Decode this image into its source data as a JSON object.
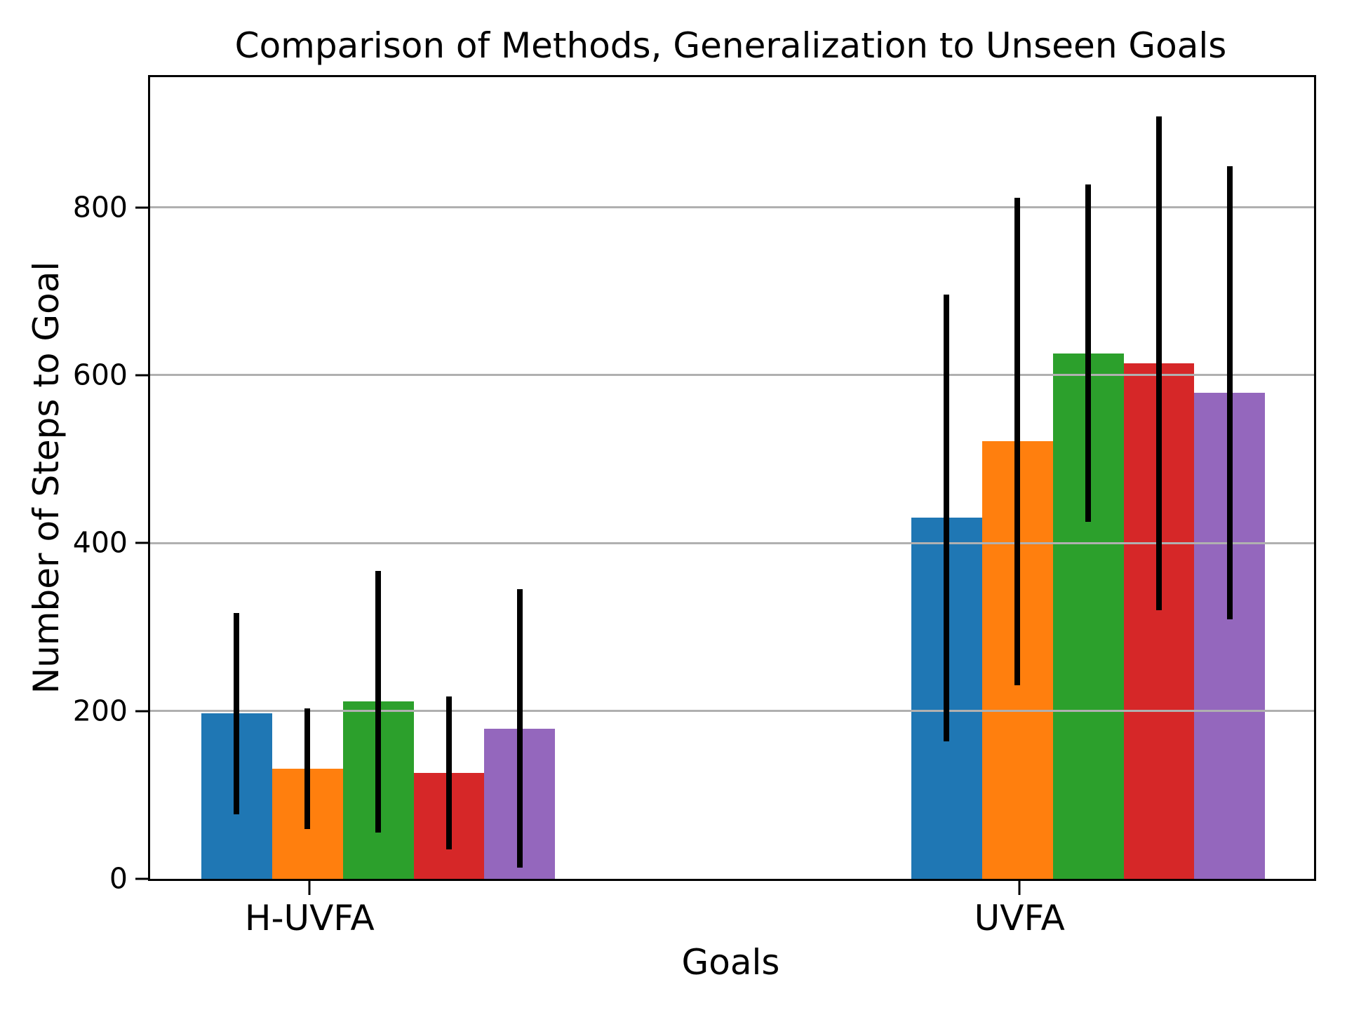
{
  "chart_data": {
    "type": "bar",
    "title": "Comparison of Methods, Generalization to Unseen Goals",
    "xlabel": "Goals",
    "ylabel": "Number of Steps to Goal",
    "categories": [
      "H-UVFA",
      "UVFA"
    ],
    "series": [
      {
        "color": "#1f77b4",
        "values": [
          197,
          430
        ],
        "errors": [
          120,
          266
        ]
      },
      {
        "color": "#ff7f0e",
        "values": [
          131,
          521
        ],
        "errors": [
          72,
          290
        ]
      },
      {
        "color": "#2ca02c",
        "values": [
          211,
          626
        ],
        "errors": [
          156,
          201
        ]
      },
      {
        "color": "#d62728",
        "values": [
          126,
          614
        ],
        "errors": [
          91,
          294
        ]
      },
      {
        "color": "#9467bd",
        "values": [
          179,
          579
        ],
        "errors": [
          166,
          270
        ]
      }
    ],
    "ylim": [
      0,
      955
    ],
    "yticks": [
      0,
      200,
      400,
      600,
      800
    ],
    "grid": "horizontal",
    "legend": "none",
    "error_bars": true,
    "layout": {
      "group_start_pct": [
        4.4,
        65.4
      ],
      "bar_width_pct": 6.08,
      "xtick_pct": [
        13.7,
        74.7
      ],
      "grid_color": "#b0b0b0",
      "error_color": "#000000",
      "bar_edge": "none"
    }
  }
}
